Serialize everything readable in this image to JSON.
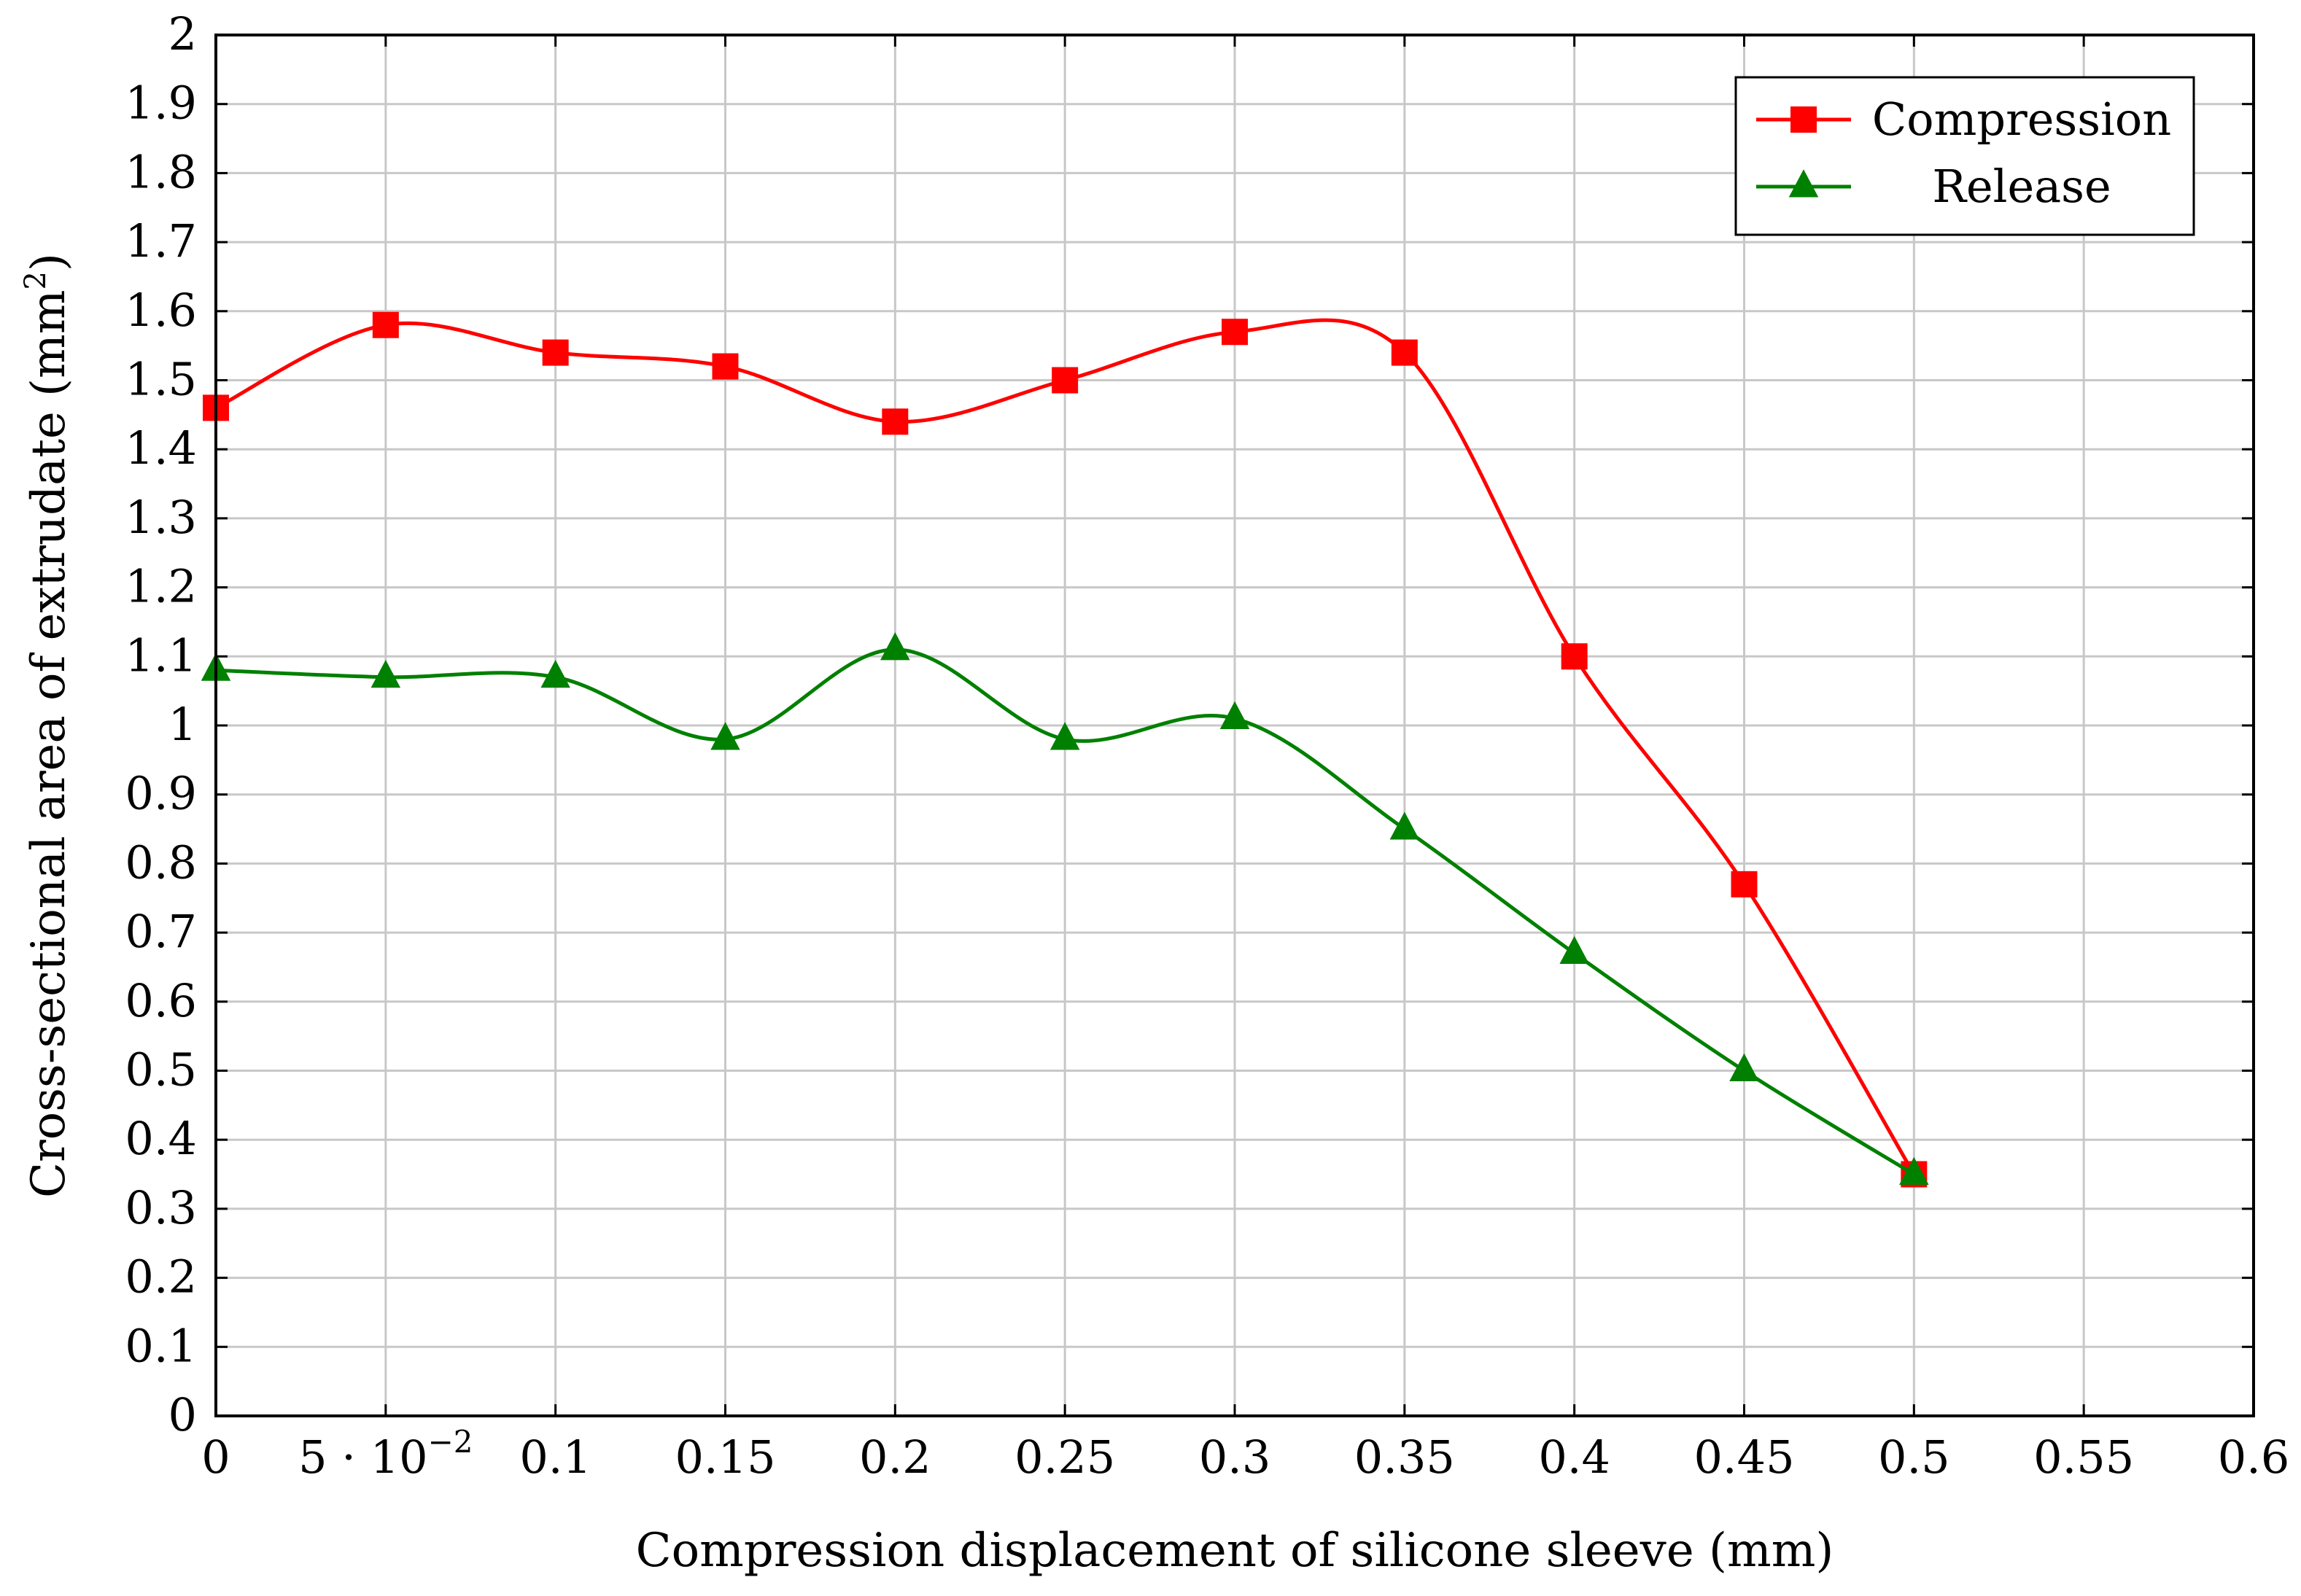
{
  "chart_data": {
    "type": "line",
    "xlabel": "Compression displacement of silicone sleeve (mm)",
    "ylabel_main": "Cross-sectional area of extrudate (mm",
    "ylabel_sup": "2",
    "ylabel_close": ")",
    "xlim": [
      0,
      0.6
    ],
    "ylim": [
      0,
      2
    ],
    "grid": true,
    "smooth": true,
    "legend_position": "top-right",
    "x_ticks": [
      {
        "value": 0,
        "label": "0"
      },
      {
        "value": 0.05,
        "label": "5 · 10",
        "exp": "−2"
      },
      {
        "value": 0.1,
        "label": "0.1"
      },
      {
        "value": 0.15,
        "label": "0.15"
      },
      {
        "value": 0.2,
        "label": "0.2"
      },
      {
        "value": 0.25,
        "label": "0.25"
      },
      {
        "value": 0.3,
        "label": "0.3"
      },
      {
        "value": 0.35,
        "label": "0.35"
      },
      {
        "value": 0.4,
        "label": "0.4"
      },
      {
        "value": 0.45,
        "label": "0.45"
      },
      {
        "value": 0.5,
        "label": "0.5"
      },
      {
        "value": 0.55,
        "label": "0.55"
      },
      {
        "value": 0.6,
        "label": "0.6"
      }
    ],
    "y_ticks": [
      {
        "value": 0,
        "label": "0"
      },
      {
        "value": 0.1,
        "label": "0.1"
      },
      {
        "value": 0.2,
        "label": "0.2"
      },
      {
        "value": 0.3,
        "label": "0.3"
      },
      {
        "value": 0.4,
        "label": "0.4"
      },
      {
        "value": 0.5,
        "label": "0.5"
      },
      {
        "value": 0.6,
        "label": "0.6"
      },
      {
        "value": 0.7,
        "label": "0.7"
      },
      {
        "value": 0.8,
        "label": "0.8"
      },
      {
        "value": 0.9,
        "label": "0.9"
      },
      {
        "value": 1,
        "label": "1"
      },
      {
        "value": 1.1,
        "label": "1.1"
      },
      {
        "value": 1.2,
        "label": "1.2"
      },
      {
        "value": 1.3,
        "label": "1.3"
      },
      {
        "value": 1.4,
        "label": "1.4"
      },
      {
        "value": 1.5,
        "label": "1.5"
      },
      {
        "value": 1.6,
        "label": "1.6"
      },
      {
        "value": 1.7,
        "label": "1.7"
      },
      {
        "value": 1.8,
        "label": "1.8"
      },
      {
        "value": 1.9,
        "label": "1.9"
      },
      {
        "value": 2,
        "label": "2"
      }
    ],
    "series": [
      {
        "name": "Compression",
        "color": "#ff0000",
        "marker": "square",
        "x": [
          0,
          0.05,
          0.1,
          0.15,
          0.2,
          0.25,
          0.3,
          0.35,
          0.4,
          0.45,
          0.5
        ],
        "y": [
          1.46,
          1.58,
          1.54,
          1.52,
          1.44,
          1.5,
          1.57,
          1.54,
          1.1,
          0.77,
          0.35
        ]
      },
      {
        "name": "Release",
        "color": "#008000",
        "marker": "triangle",
        "x": [
          0,
          0.05,
          0.1,
          0.15,
          0.2,
          0.25,
          0.3,
          0.35,
          0.4,
          0.45,
          0.5
        ],
        "y": [
          1.08,
          1.07,
          1.07,
          0.98,
          1.11,
          0.98,
          1.01,
          0.85,
          0.67,
          0.5,
          0.35
        ]
      }
    ]
  }
}
